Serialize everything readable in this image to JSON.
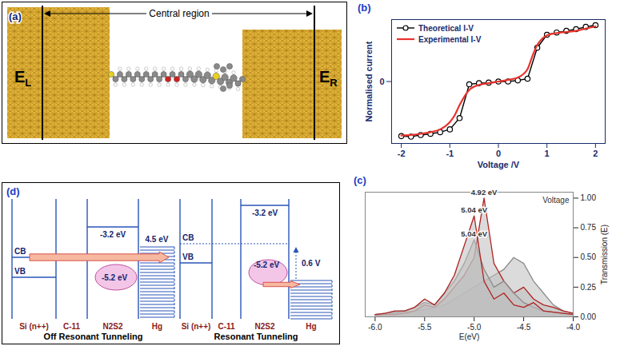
{
  "chart_data": [
    {
      "type": "line",
      "panel_label": "(b)",
      "xlabel": "Voltage /V",
      "ylabel": "Normalised current",
      "xlim": [
        -2.2,
        2.2
      ],
      "xticks": [
        -2,
        -1,
        0,
        1,
        2
      ],
      "ylim": [
        -1.1,
        1.1
      ],
      "yticks": [
        0
      ],
      "legend": "upper left",
      "series": [
        {
          "name": "Theoretical I-V",
          "color": "#000000",
          "marker": "circle",
          "x": [
            -2,
            -1.8,
            -1.6,
            -1.4,
            -1.2,
            -1,
            -0.8,
            -0.6,
            -0.4,
            -0.2,
            0,
            0.2,
            0.4,
            0.6,
            0.8,
            1,
            1.2,
            1.4,
            1.6,
            1.8,
            2
          ],
          "values": [
            -0.97,
            -0.98,
            -0.95,
            -0.93,
            -0.9,
            -0.85,
            -0.65,
            -0.05,
            -0.03,
            -0.02,
            0,
            0,
            0.02,
            0.05,
            0.6,
            0.83,
            0.87,
            0.9,
            0.93,
            0.97,
            1.0
          ]
        },
        {
          "name": "Experimental I-V",
          "color": "#e8322c",
          "x": [
            -2,
            -1.8,
            -1.6,
            -1.4,
            -1.2,
            -1,
            -0.9,
            -0.8,
            -0.6,
            -0.4,
            -0.2,
            0,
            0.2,
            0.4,
            0.6,
            0.7,
            0.8,
            0.9,
            1,
            1.2,
            1.4,
            1.6,
            1.8,
            2
          ],
          "values": [
            -0.96,
            -0.95,
            -0.93,
            -0.9,
            -0.85,
            -0.72,
            -0.6,
            -0.42,
            -0.15,
            -0.06,
            -0.03,
            0,
            0.03,
            0.07,
            0.22,
            0.45,
            0.65,
            0.76,
            0.82,
            0.86,
            0.88,
            0.9,
            0.94,
            0.98
          ]
        }
      ]
    },
    {
      "type": "area",
      "panel_label": "(c)",
      "xlabel": "E(eV)",
      "ylabel": "Transmission (E)",
      "zlabel": "Voltage",
      "x": [
        -6,
        -5.9,
        -5.8,
        -5.7,
        -5.6,
        -5.5,
        -5.4,
        -5.3,
        -5.2,
        -5.1,
        -5,
        -4.9,
        -4.8,
        -4.7,
        -4.6,
        -4.5,
        -4.4,
        -4.3,
        -4.2,
        -4.1,
        -4
      ],
      "xlim": [
        -6.1,
        -4.0
      ],
      "xticks": [
        {
          "value": -6,
          "label": "-6.0"
        },
        {
          "value": -5.5,
          "label": "-5.5"
        },
        {
          "value": -5,
          "label": "-5.0"
        },
        {
          "value": -4.5,
          "label": "-4.5"
        },
        {
          "value": -4,
          "label": "-4.0"
        }
      ],
      "ylim": [
        0,
        1.05
      ],
      "yticks": [
        {
          "value": 0,
          "label": "0.00"
        },
        {
          "value": 0.25,
          "label": "0.25"
        },
        {
          "value": 0.5,
          "label": "0.50"
        },
        {
          "value": 0.75,
          "label": "0.75"
        },
        {
          "value": 1,
          "label": "1.00"
        }
      ],
      "series": [
        {
          "color": "#8c8c8c",
          "values": [
            0.02,
            0.02,
            0.03,
            0.04,
            0.05,
            0.06,
            0.08,
            0.1,
            0.15,
            0.2,
            0.25,
            0.3,
            0.35,
            0.4,
            0.5,
            0.45,
            0.3,
            0.2,
            0.1,
            0.05,
            0.03
          ]
        },
        {
          "color": "#b22222",
          "peak_label": "4.92 eV",
          "values": [
            0.01,
            0.02,
            0.02,
            0.03,
            0.05,
            0.1,
            0.08,
            0.15,
            0.25,
            0.35,
            0.5,
            1.0,
            0.45,
            0.3,
            0.2,
            0.25,
            0.15,
            0.1,
            0.08,
            0.05,
            0.03
          ]
        },
        {
          "color": "#8c8c8c",
          "peak_label": "5.04 eV",
          "values": [
            0.02,
            0.03,
            0.04,
            0.05,
            0.08,
            0.12,
            0.1,
            0.2,
            0.3,
            0.45,
            0.65,
            0.4,
            0.25,
            0.3,
            0.2,
            0.12,
            0.08,
            0.05,
            0.04,
            0.03,
            0.02
          ]
        },
        {
          "color": "#b22222",
          "peak_label": "5.04 eV",
          "values": [
            0.02,
            0.03,
            0.05,
            0.05,
            0.08,
            0.15,
            0.1,
            0.2,
            0.35,
            0.6,
            0.85,
            0.3,
            0.15,
            0.2,
            0.1,
            0.08,
            0.12,
            0.05,
            0.04,
            0.03,
            0.02
          ]
        }
      ]
    }
  ],
  "diagrams": {
    "a": {
      "label": "(a)",
      "region_label": "Central region",
      "left_electrode": {
        "main": "E",
        "sub": "L"
      },
      "right_electrode": {
        "main": "E",
        "sub": "R"
      }
    },
    "d": {
      "label": "(d)",
      "panels": [
        {
          "title": "Off Resonant Tunneling",
          "layers": [
            "Si (n++)",
            "C-11",
            "N2S2",
            "Hg"
          ],
          "cb": "CB",
          "vb": "VB",
          "lumo": "-3.2 eV",
          "homo": "-5.2 eV",
          "arrow_label": "4.5 eV"
        },
        {
          "title": "Resonant Tunneling",
          "layers": [
            "Si (n++)",
            "C-11",
            "N2S2",
            "Hg"
          ],
          "cb": "CB",
          "vb": "VB",
          "lumo": "-3.2 eV",
          "homo": "-5.2 eV",
          "arrow_label": "0.6 V"
        }
      ]
    }
  }
}
